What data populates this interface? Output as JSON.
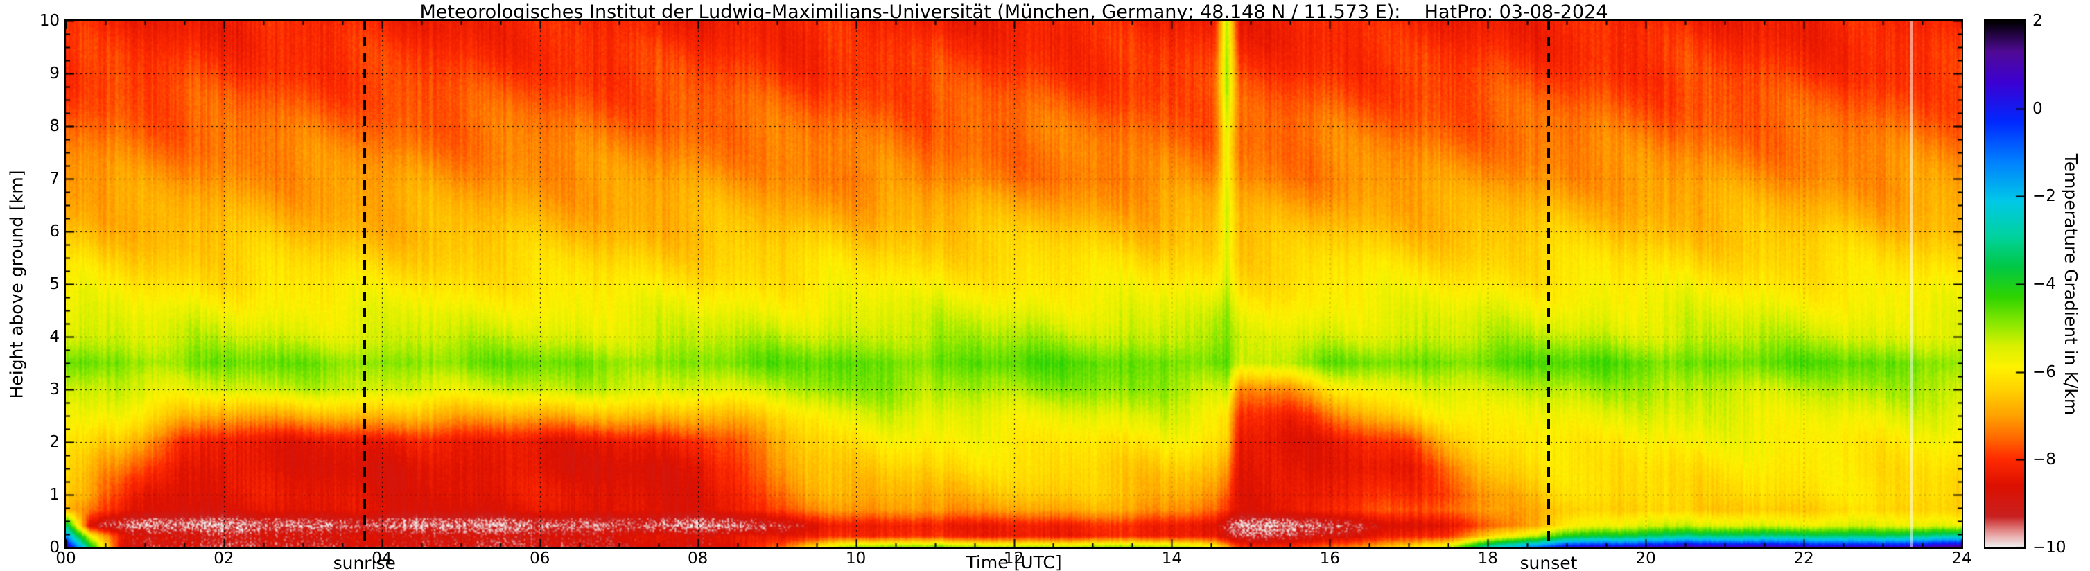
{
  "title": "Meteorologisches Institut der Ludwig-Maximilians-Universität (München, Germany; 48.148 N / 11.573 E):    HatPro: 03-08-2024",
  "axes": {
    "x_label": "Time [UTC]",
    "y_label": "Height above ground [km]",
    "x_ticks": [
      "00",
      "02",
      "04",
      "06",
      "08",
      "10",
      "12",
      "14",
      "16",
      "18",
      "20",
      "22",
      "24"
    ],
    "x_tick_values": [
      0,
      2,
      4,
      6,
      8,
      10,
      12,
      14,
      16,
      18,
      20,
      22,
      24
    ],
    "y_ticks": [
      "0",
      "1",
      "2",
      "3",
      "4",
      "5",
      "6",
      "7",
      "8",
      "9",
      "10"
    ],
    "y_tick_values": [
      0,
      1,
      2,
      3,
      4,
      5,
      6,
      7,
      8,
      9,
      10
    ]
  },
  "colorbar": {
    "label": "Temperature Gradient in K/km",
    "tick_labels": [
      "2",
      "0",
      "−2",
      "−4",
      "−6",
      "−8",
      "−10"
    ],
    "tick_values": [
      2,
      0,
      -2,
      -4,
      -6,
      -8,
      -10
    ],
    "stops": [
      {
        "value": -10,
        "color": "#f0f0f0"
      },
      {
        "value": -9.7,
        "color": "#e8a0a0"
      },
      {
        "value": -9.3,
        "color": "#c82020"
      },
      {
        "value": -8.6,
        "color": "#dc1000"
      },
      {
        "value": -8.0,
        "color": "#ff2a00"
      },
      {
        "value": -7.5,
        "color": "#ff6a00"
      },
      {
        "value": -7.0,
        "color": "#ffa200"
      },
      {
        "value": -6.4,
        "color": "#ffd300"
      },
      {
        "value": -5.9,
        "color": "#fff200"
      },
      {
        "value": -5.4,
        "color": "#d8f000"
      },
      {
        "value": -4.9,
        "color": "#8ae800"
      },
      {
        "value": -4.3,
        "color": "#30d400"
      },
      {
        "value": -3.6,
        "color": "#00c846"
      },
      {
        "value": -2.9,
        "color": "#00d2a0"
      },
      {
        "value": -2.1,
        "color": "#00c8e8"
      },
      {
        "value": -1.2,
        "color": "#0080ff"
      },
      {
        "value": -0.3,
        "color": "#0028ff"
      },
      {
        "value": 0.6,
        "color": "#3c00d2"
      },
      {
        "value": 1.3,
        "color": "#500a96"
      },
      {
        "value": 2,
        "color": "#000000"
      }
    ]
  },
  "annotations": {
    "sunrise": {
      "label": "sunrise",
      "time_utc": 3.78
    },
    "sunset": {
      "label": "sunset",
      "time_utc": 18.77
    },
    "light_streak_time_utc": 23.35
  },
  "chart_data": {
    "type": "heatmap",
    "value_units": "K/km",
    "xlim": [
      0,
      24
    ],
    "ylim": [
      0,
      10
    ],
    "clim": [
      -10,
      2
    ],
    "x_hours": [
      0,
      0.3,
      0.7,
      1,
      1.5,
      2,
      3,
      4,
      5,
      6,
      7,
      8,
      8.5,
      9,
      9.5,
      10,
      11,
      12,
      13,
      14,
      14.55,
      14.7,
      14.85,
      15.5,
      16,
      17,
      17.5,
      18,
      19,
      20,
      21,
      22,
      23,
      24
    ],
    "y_km": [
      0,
      0.2,
      0.4,
      0.7,
      1,
      1.5,
      2,
      2.5,
      3,
      3.5,
      4,
      5,
      6,
      7,
      8,
      9,
      10
    ],
    "values": [
      [
        0.8,
        -4.0,
        -8.8,
        -9.0,
        -9.0,
        -9.0,
        -9.0,
        -9.0,
        -9.0,
        -9.0,
        -9.0,
        -8.8,
        -8.5,
        -7.5,
        -6.0,
        -5.0,
        -5.0,
        -5.2,
        -5.0,
        -5.2,
        -6.0,
        -7.0,
        -8.0,
        -8.0,
        -7.5,
        -6.5,
        -5.5,
        -3.0,
        0.3,
        0.5,
        0.8,
        0.8,
        0.5,
        1.0
      ],
      [
        -1.5,
        -6.0,
        -8.5,
        -8.8,
        -8.8,
        -8.8,
        -8.8,
        -8.8,
        -8.8,
        -8.8,
        -8.8,
        -8.6,
        -8.4,
        -8.2,
        -8.2,
        -8.2,
        -8.2,
        -8.2,
        -8.2,
        -8.3,
        -8.5,
        -8.8,
        -9.0,
        -9.0,
        -8.8,
        -8.4,
        -8.0,
        -6.5,
        -4.0,
        -3.5,
        -3.2,
        -3.0,
        -3.4,
        -3.0
      ],
      [
        -3.5,
        -9.0,
        -9.6,
        -9.6,
        -9.6,
        -9.6,
        -9.6,
        -9.6,
        -9.6,
        -9.6,
        -9.6,
        -9.6,
        -9.6,
        -9.0,
        -8.6,
        -8.4,
        -8.3,
        -8.2,
        -8.2,
        -8.3,
        -8.6,
        -9.0,
        -9.6,
        -9.6,
        -9.4,
        -8.8,
        -8.4,
        -7.6,
        -6.0,
        -5.6,
        -5.4,
        -5.4,
        -5.6,
        -5.8
      ],
      [
        -7.0,
        -7.6,
        -8.2,
        -8.5,
        -8.6,
        -8.6,
        -8.6,
        -8.6,
        -8.6,
        -8.6,
        -8.6,
        -8.5,
        -8.3,
        -7.8,
        -7.4,
        -7.2,
        -7.0,
        -7.0,
        -7.0,
        -7.1,
        -7.4,
        -7.8,
        -8.4,
        -8.4,
        -8.2,
        -7.8,
        -7.4,
        -7.0,
        -6.6,
        -6.5,
        -6.4,
        -6.4,
        -6.4,
        -6.5
      ],
      [
        -6.6,
        -7.0,
        -7.8,
        -8.3,
        -8.5,
        -8.5,
        -8.5,
        -8.5,
        -8.5,
        -8.5,
        -8.5,
        -8.5,
        -8.3,
        -7.6,
        -7.0,
        -6.8,
        -6.7,
        -6.6,
        -6.6,
        -6.7,
        -7.0,
        -7.4,
        -8.5,
        -8.5,
        -8.4,
        -8.0,
        -7.6,
        -7.0,
        -6.4,
        -6.3,
        -6.2,
        -6.2,
        -6.2,
        -6.3
      ],
      [
        -6.2,
        -6.6,
        -7.2,
        -7.8,
        -8.5,
        -8.6,
        -8.6,
        -8.6,
        -8.6,
        -8.6,
        -8.6,
        -8.6,
        -8.2,
        -7.2,
        -6.6,
        -6.4,
        -6.3,
        -6.3,
        -6.3,
        -6.4,
        -6.6,
        -7.0,
        -8.6,
        -8.6,
        -8.5,
        -8.2,
        -7.4,
        -6.6,
        -6.2,
        -6.1,
        -6.1,
        -6.1,
        -6.1,
        -6.1
      ],
      [
        -6.0,
        -6.2,
        -6.6,
        -7.2,
        -8.2,
        -8.4,
        -8.4,
        -8.4,
        -8.4,
        -8.4,
        -8.4,
        -8.3,
        -7.8,
        -6.8,
        -6.2,
        -6.0,
        -6.0,
        -6.0,
        -6.0,
        -6.0,
        -6.2,
        -6.4,
        -8.5,
        -8.5,
        -8.3,
        -7.8,
        -6.8,
        -6.2,
        -6.0,
        -5.9,
        -5.9,
        -5.9,
        -5.9,
        -5.9
      ],
      [
        -5.8,
        -5.8,
        -6.0,
        -6.2,
        -6.6,
        -6.8,
        -6.8,
        -6.8,
        -6.8,
        -6.8,
        -6.8,
        -6.8,
        -6.6,
        -6.2,
        -5.8,
        -5.6,
        -5.6,
        -5.6,
        -5.6,
        -5.6,
        -5.8,
        -6.0,
        -8.0,
        -8.0,
        -7.4,
        -6.4,
        -6.0,
        -5.8,
        -5.6,
        -5.6,
        -5.6,
        -5.6,
        -5.6,
        -5.6
      ],
      [
        -5.4,
        -5.4,
        -5.4,
        -5.4,
        -5.4,
        -5.4,
        -5.4,
        -5.4,
        -5.4,
        -5.4,
        -5.4,
        -5.4,
        -5.4,
        -5.4,
        -5.0,
        -5.0,
        -5.0,
        -5.0,
        -5.0,
        -5.0,
        -5.2,
        -5.0,
        -7.2,
        -7.0,
        -6.3,
        -5.6,
        -5.4,
        -5.2,
        -5.2,
        -5.2,
        -5.2,
        -5.2,
        -5.2,
        -5.2
      ],
      [
        -4.5,
        -4.6,
        -4.8,
        -4.8,
        -4.8,
        -4.8,
        -4.8,
        -4.8,
        -4.8,
        -4.8,
        -4.8,
        -4.8,
        -4.8,
        -4.7,
        -4.6,
        -4.6,
        -4.6,
        -4.6,
        -4.6,
        -4.6,
        -4.6,
        -4.5,
        -5.5,
        -5.2,
        -4.8,
        -4.6,
        -4.6,
        -4.6,
        -4.6,
        -4.6,
        -4.6,
        -4.6,
        -4.7,
        -4.7
      ],
      [
        -5.2,
        -5.3,
        -5.4,
        -5.4,
        -5.4,
        -5.4,
        -5.4,
        -5.4,
        -5.4,
        -5.4,
        -5.4,
        -5.4,
        -5.4,
        -5.3,
        -5.2,
        -5.2,
        -5.2,
        -5.2,
        -5.2,
        -5.2,
        -5.2,
        -5.0,
        -5.6,
        -5.5,
        -5.4,
        -5.3,
        -5.3,
        -5.3,
        -5.3,
        -5.3,
        -5.3,
        -5.3,
        -5.4,
        -5.4
      ],
      [
        -6.0,
        -6.0,
        -6.1,
        -6.1,
        -6.1,
        -6.1,
        -6.1,
        -6.1,
        -6.1,
        -6.1,
        -6.1,
        -6.1,
        -6.1,
        -6.1,
        -6.0,
        -6.0,
        -6.0,
        -6.0,
        -6.0,
        -6.0,
        -6.0,
        -5.2,
        -6.1,
        -6.1,
        -6.0,
        -6.0,
        -6.0,
        -6.0,
        -6.0,
        -6.0,
        -6.0,
        -6.0,
        -6.0,
        -6.0
      ],
      [
        -6.6,
        -6.6,
        -6.7,
        -6.7,
        -6.7,
        -6.7,
        -6.7,
        -6.7,
        -6.7,
        -6.7,
        -6.7,
        -6.7,
        -6.7,
        -6.7,
        -6.6,
        -6.6,
        -6.6,
        -6.6,
        -6.6,
        -6.6,
        -6.6,
        -5.3,
        -6.7,
        -6.7,
        -6.6,
        -6.6,
        -6.6,
        -6.6,
        -6.6,
        -6.6,
        -6.6,
        -6.6,
        -6.6,
        -6.6
      ],
      [
        -7.1,
        -7.1,
        -7.1,
        -7.1,
        -7.1,
        -7.1,
        -7.1,
        -7.1,
        -7.1,
        -7.1,
        -7.1,
        -7.1,
        -7.1,
        -7.1,
        -7.2,
        -7.3,
        -7.3,
        -7.3,
        -7.3,
        -7.3,
        -7.2,
        -5.5,
        -7.2,
        -7.2,
        -7.2,
        -7.1,
        -7.1,
        -7.1,
        -7.1,
        -7.1,
        -7.1,
        -7.1,
        -7.1,
        -7.1
      ],
      [
        -7.5,
        -7.5,
        -7.5,
        -7.5,
        -7.5,
        -7.5,
        -7.5,
        -7.5,
        -7.5,
        -7.5,
        -7.5,
        -7.5,
        -7.5,
        -7.5,
        -7.5,
        -7.5,
        -7.5,
        -7.5,
        -7.5,
        -7.5,
        -7.5,
        -5.4,
        -7.5,
        -7.5,
        -7.5,
        -7.5,
        -7.5,
        -7.5,
        -7.5,
        -7.5,
        -7.5,
        -7.5,
        -7.5,
        -7.5
      ],
      [
        -7.9,
        -7.9,
        -7.9,
        -7.9,
        -7.9,
        -7.9,
        -7.9,
        -7.9,
        -7.9,
        -7.9,
        -7.9,
        -7.9,
        -7.9,
        -7.9,
        -7.9,
        -7.9,
        -7.9,
        -7.9,
        -7.9,
        -7.9,
        -7.9,
        -5.2,
        -7.9,
        -7.9,
        -7.9,
        -7.9,
        -7.9,
        -7.9,
        -7.9,
        -7.9,
        -7.9,
        -7.9,
        -7.9,
        -7.9
      ],
      [
        -8.2,
        -8.2,
        -8.2,
        -8.2,
        -8.2,
        -8.2,
        -8.2,
        -8.2,
        -8.2,
        -8.2,
        -8.2,
        -8.2,
        -8.2,
        -8.2,
        -8.2,
        -8.2,
        -8.2,
        -8.2,
        -8.2,
        -8.2,
        -8.2,
        -5.0,
        -8.2,
        -8.2,
        -8.2,
        -8.2,
        -8.2,
        -8.2,
        -8.2,
        -8.2,
        -8.2,
        -8.2,
        -8.2,
        -8.2
      ]
    ]
  }
}
